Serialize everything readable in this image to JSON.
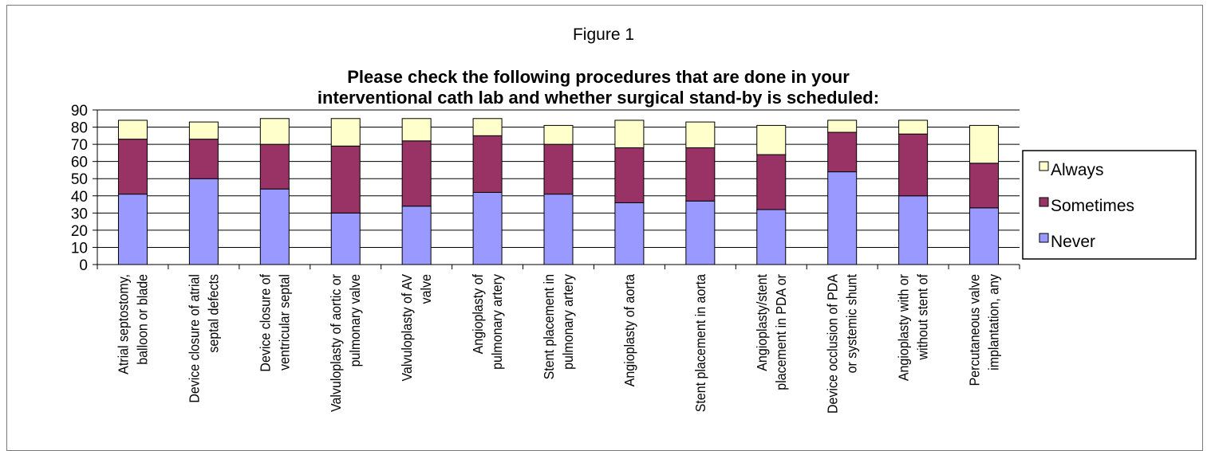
{
  "figure_label": "Figure 1",
  "chart_data": {
    "type": "bar",
    "stacked": true,
    "title_lines": [
      "Please check the following procedures that are done in your",
      "interventional cath lab and whether surgical stand-by is scheduled:"
    ],
    "xlabel": "",
    "ylabel": "",
    "ylim": [
      0,
      90
    ],
    "yticks": [
      0,
      10,
      20,
      30,
      40,
      50,
      60,
      70,
      80,
      90
    ],
    "grid": true,
    "legend_position": "right",
    "categories": [
      [
        "Atrial septostomy,",
        "balloon or blade"
      ],
      [
        "Device closure of atrial",
        "septal defects"
      ],
      [
        "Device closure of",
        "ventricular septal"
      ],
      [
        "Valvuloplasty of aortic or",
        "pulmonary valve"
      ],
      [
        "Valvuloplasty of AV",
        "valve"
      ],
      [
        "Angioplasty of",
        "pulmonary artery"
      ],
      [
        "Stent placement in",
        "pulmonary artery"
      ],
      [
        "Angioplasty of aorta"
      ],
      [
        "Stent placement in aorta"
      ],
      [
        "Angioplasty/stent",
        "placement in PDA or"
      ],
      [
        "Device occlusion of PDA",
        "or systemic shunt"
      ],
      [
        "Angioplasty with or",
        "without stent of"
      ],
      [
        "Percutaneous valve",
        "implantation, any"
      ]
    ],
    "series": [
      {
        "name": "Never",
        "color": "#9999ff",
        "values": [
          41,
          50,
          44,
          30,
          34,
          42,
          41,
          36,
          37,
          32,
          54,
          40,
          33
        ]
      },
      {
        "name": "Sometimes",
        "color": "#993366",
        "values": [
          32,
          23,
          26,
          39,
          38,
          33,
          29,
          32,
          31,
          32,
          23,
          36,
          26
        ]
      },
      {
        "name": "Always",
        "color": "#ffffcc",
        "values": [
          11,
          10,
          15,
          16,
          13,
          10,
          11,
          16,
          15,
          17,
          7,
          8,
          22
        ]
      }
    ],
    "legend_order": [
      "Always",
      "Sometimes",
      "Never"
    ]
  }
}
